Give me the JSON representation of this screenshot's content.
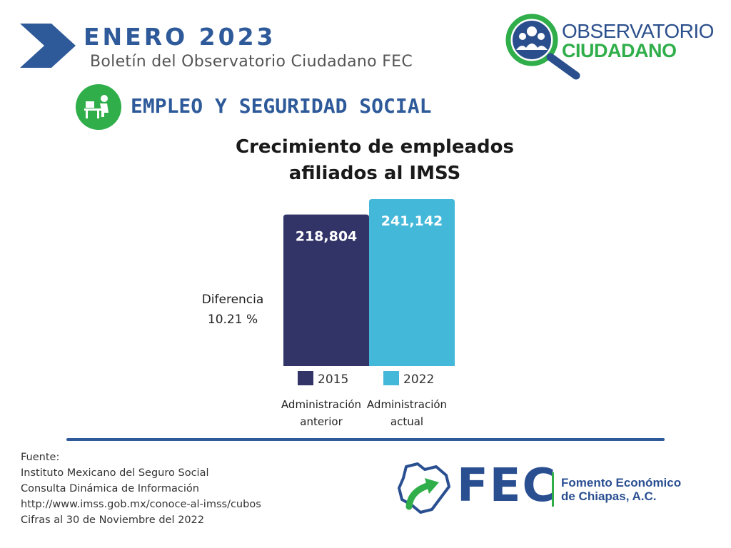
{
  "header": {
    "title": "ENERO  2023",
    "subtitle": "Boletín del Observatorio Ciudadano FEC"
  },
  "logo_observatorio": {
    "line1": "OBSERVATORIO",
    "line2": "CIUDADANO"
  },
  "section": {
    "title": "EMPLEO Y SEGURIDAD SOCIAL",
    "icon": "office-worker-icon"
  },
  "chart_title_line1": "Crecimiento de empleados",
  "chart_title_line2": "afiliados al IMSS",
  "difference": {
    "label": "Diferencia",
    "value": "10.21 %"
  },
  "colors": {
    "brand_blue": "#2e5a9a",
    "brand_green": "#2fae4a",
    "bar_2015": "#323468",
    "bar_2022": "#44b8d8"
  },
  "chart_data": {
    "type": "bar",
    "title": "Crecimiento de empleados afiliados al IMSS",
    "categories": [
      "2015",
      "2022"
    ],
    "values": [
      218804,
      241142
    ],
    "value_labels": [
      "218,804",
      "241,142"
    ],
    "sublabels": [
      [
        "Administración",
        "anterior"
      ],
      [
        "Administración",
        "actual"
      ]
    ],
    "colors": [
      "#323468",
      "#44b8d8"
    ],
    "ylim": [
      0,
      241142
    ],
    "grid": false,
    "legend": "bottom"
  },
  "source": {
    "lines": [
      "Fuente:",
      "Instituto Mexicano del Seguro Social",
      "Consulta Dinámica de Información",
      "http://www.imss.gob.mx/conoce-al-imss/cubos",
      "Cifras al 30 de Noviembre del 2022"
    ]
  },
  "fec_logo": {
    "abbr": "FEC",
    "name_line1": "Fomento Económico",
    "name_line2": "de Chiapas, A.C."
  }
}
